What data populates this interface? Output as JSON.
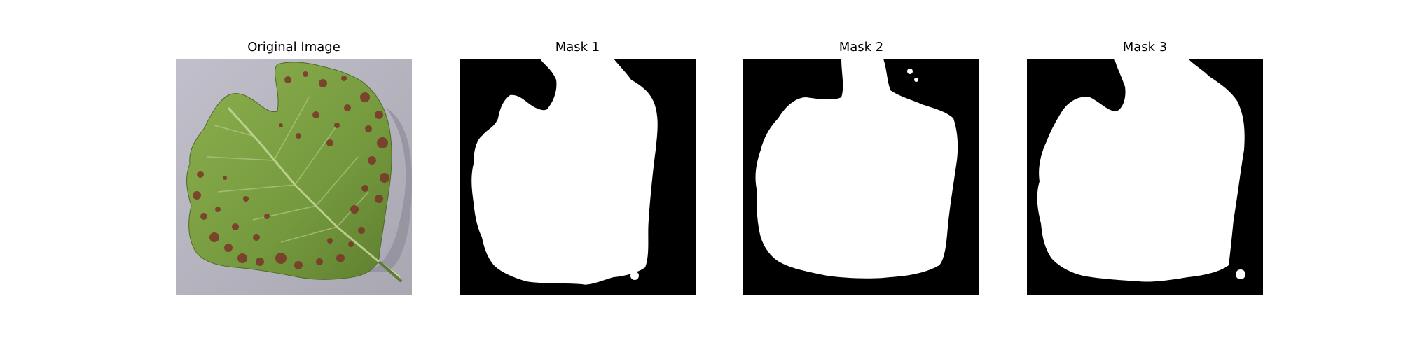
{
  "panels": [
    {
      "title": "Original Image",
      "kind": "photo"
    },
    {
      "title": "Mask 1",
      "kind": "mask"
    },
    {
      "title": "Mask 2",
      "kind": "mask"
    },
    {
      "title": "Mask 3",
      "kind": "mask"
    }
  ],
  "colors": {
    "background": "#ffffff",
    "mask_background": "#000000",
    "mask_foreground": "#ffffff",
    "photo_background": "#b9b7c2",
    "leaf_green": "#7ea048",
    "leaf_dark_green": "#567a2c",
    "lesion": "#7a3528",
    "stem": "#5d7a32"
  }
}
